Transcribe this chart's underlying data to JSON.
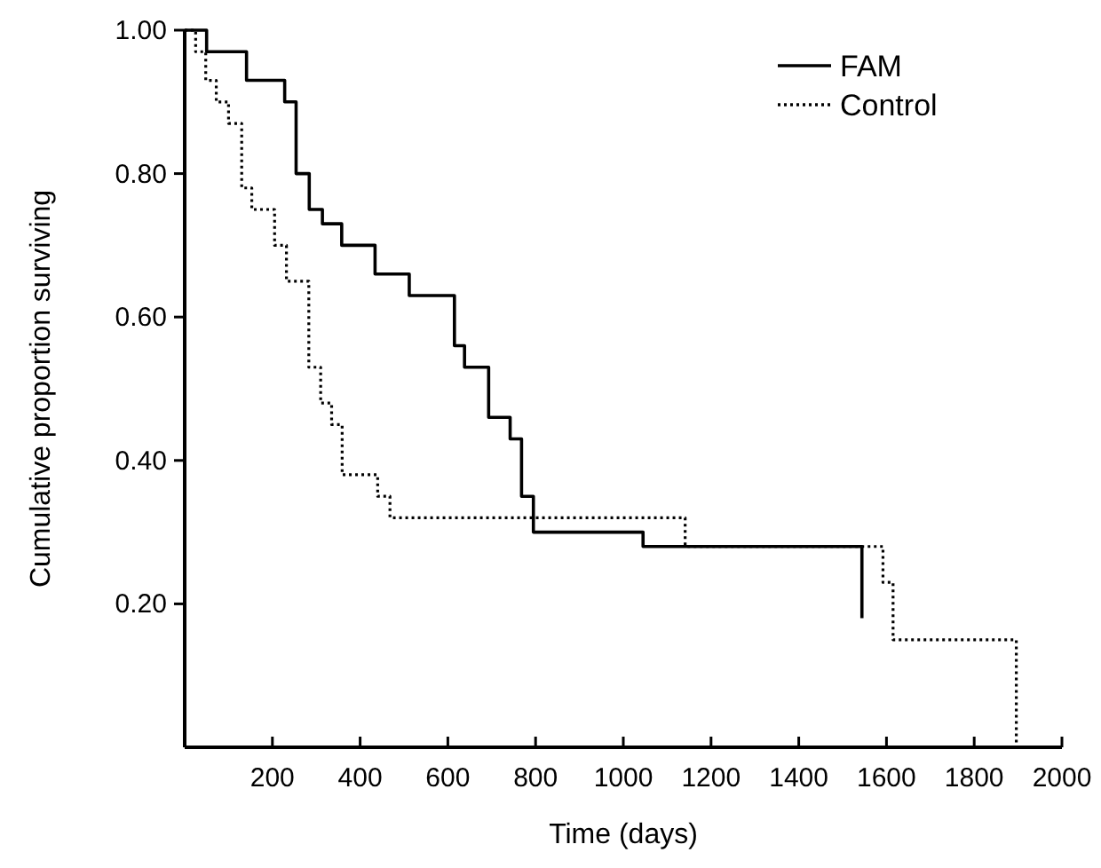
{
  "chart_data": {
    "type": "step",
    "xlabel": "Time (days)",
    "ylabel": "Cumulative proportion surviving",
    "xlim": [
      0,
      2000
    ],
    "ylim": [
      0,
      1
    ],
    "xticks": [
      200,
      400,
      600,
      800,
      1000,
      1200,
      1400,
      1600,
      1800,
      2000
    ],
    "yticks": [
      {
        "value": 0.2,
        "label": "0.20"
      },
      {
        "value": 0.4,
        "label": "0.40"
      },
      {
        "value": 0.6,
        "label": "0.60"
      },
      {
        "value": 0.8,
        "label": "0.80"
      },
      {
        "value": 1,
        "label": "1.00"
      }
    ],
    "legend": "top right",
    "grid": false,
    "marker": "none",
    "series": [
      {
        "name": "FAM",
        "color": "#000000",
        "line_style": "solid",
        "x": [
          0,
          50,
          141,
          228,
          254,
          284,
          314,
          358,
          434,
          512,
          615,
          638,
          693,
          742,
          768,
          795,
          1045,
          1544,
          1544
        ],
        "values": [
          1,
          0.97,
          0.93,
          0.9,
          0.8,
          0.75,
          0.73,
          0.7,
          0.66,
          0.63,
          0.56,
          0.53,
          0.46,
          0.43,
          0.35,
          0.3,
          0.28,
          0.28,
          0.18
        ]
      },
      {
        "name": "Control",
        "color": "#000000",
        "line_style": "dotted",
        "x": [
          0,
          25,
          48,
          72,
          100,
          130,
          153,
          205,
          232,
          283,
          310,
          335,
          359,
          440,
          468,
          1141,
          1592,
          1615,
          1896,
          1896
        ],
        "values": [
          1,
          0.97,
          0.93,
          0.9,
          0.87,
          0.78,
          0.75,
          0.7,
          0.65,
          0.53,
          0.48,
          0.45,
          0.38,
          0.35,
          0.32,
          0.28,
          0.23,
          0.15,
          0.15,
          0
        ]
      }
    ]
  }
}
